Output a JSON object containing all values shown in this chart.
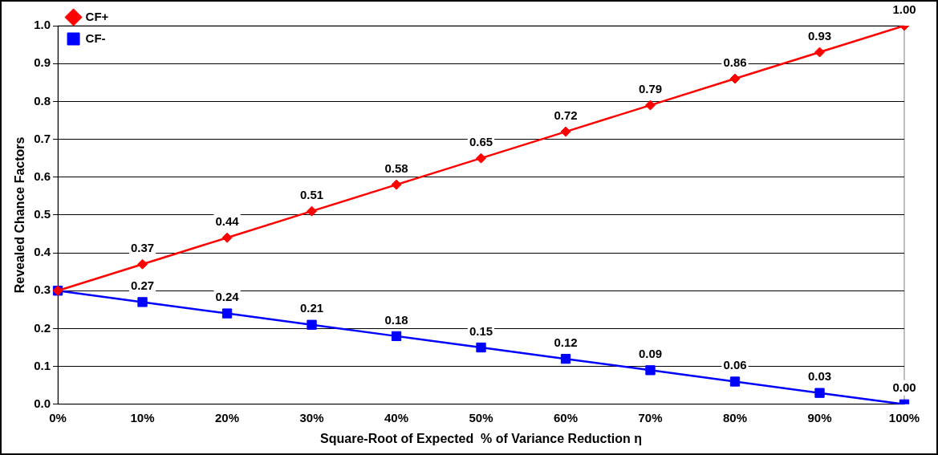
{
  "chart_data": {
    "type": "line",
    "xlabel": "Square-Root of Expected  % of Variance Reduction η",
    "ylabel": "Revealed Chance Factors",
    "categories": [
      "0%",
      "10%",
      "20%",
      "30%",
      "40%",
      "50%",
      "60%",
      "70%",
      "80%",
      "90%",
      "100%"
    ],
    "series": [
      {
        "name": "CF+",
        "color": "#ff0000",
        "marker": "diamond",
        "values": [
          0.3,
          0.37,
          0.44,
          0.51,
          0.58,
          0.65,
          0.72,
          0.79,
          0.86,
          0.93,
          1.0
        ],
        "value_labels": [
          null,
          "0.37",
          "0.44",
          "0.51",
          "0.58",
          "0.65",
          "0.72",
          "0.79",
          "0.86",
          "0.93",
          "1.00"
        ]
      },
      {
        "name": "CF-",
        "color": "#0000ff",
        "marker": "square",
        "values": [
          0.3,
          0.27,
          0.24,
          0.21,
          0.18,
          0.15,
          0.12,
          0.09,
          0.06,
          0.03,
          0.0
        ],
        "value_labels": [
          null,
          "0.27",
          "0.24",
          "0.21",
          "0.18",
          "0.15",
          "0.12",
          "0.09",
          "0.06",
          "0.03",
          "0.00"
        ]
      }
    ],
    "ylim": [
      0,
      1
    ],
    "yticks": [
      {
        "value": 0,
        "label": "0.0"
      },
      {
        "value": 0.1,
        "label": "0.1"
      },
      {
        "value": 0.2,
        "label": "0.2"
      },
      {
        "value": 0.3,
        "label": "0.3"
      },
      {
        "value": 0.4,
        "label": "0.4"
      },
      {
        "value": 0.5,
        "label": "0.5"
      },
      {
        "value": 0.6,
        "label": "0.6"
      },
      {
        "value": 0.7,
        "label": "0.7"
      },
      {
        "value": 0.8,
        "label": "0.8"
      },
      {
        "value": 0.9,
        "label": "0.9"
      },
      {
        "value": 1,
        "label": "1.0"
      }
    ],
    "grid": "y",
    "legend": "top left",
    "line_style": "solid"
  }
}
